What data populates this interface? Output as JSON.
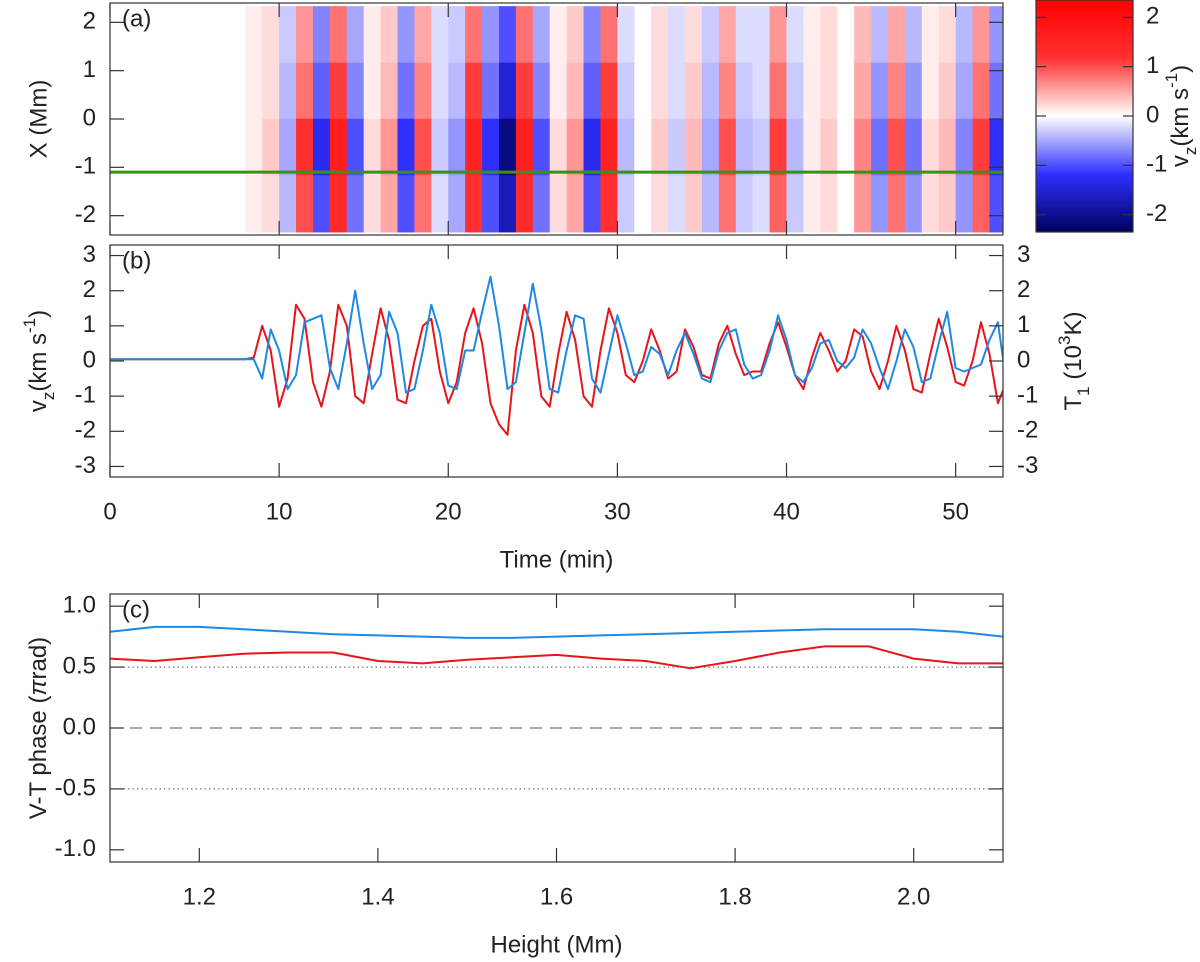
{
  "chart_data": [
    {
      "type": "heatmap",
      "annotation": "(a)",
      "ylabel": "X (Mm)",
      "xlim": [
        0,
        52.8
      ],
      "ylim": [
        -2.4,
        2.4
      ],
      "yticks": [
        -2,
        -1,
        0,
        1,
        2
      ],
      "x": [
        0.5,
        1.5,
        2.5,
        3.5,
        4.5,
        5.5,
        6.5,
        7.5,
        8.5,
        9.5,
        10.5,
        11.5,
        12.5,
        13.5,
        14.5,
        15.5,
        16.5,
        17.5,
        18.5,
        19.5,
        20.5,
        21.5,
        22.5,
        23.5,
        24.5,
        25.5,
        26.5,
        27.5,
        28.5,
        29.5,
        30.5,
        31.5,
        32.5,
        33.5,
        34.5,
        35.5,
        36.5,
        37.5,
        38.5,
        39.5,
        40.5,
        41.5,
        42.5,
        43.5,
        44.5,
        45.5,
        46.5,
        47.5,
        48.5,
        49.5,
        50.5,
        51.5,
        52.5
      ],
      "y": [
        1.75,
        0.58,
        -0.58,
        -1.75
      ],
      "z": [
        [
          0,
          0,
          0,
          0,
          0,
          0,
          0,
          0,
          0.1,
          0.2,
          -0.3,
          0.6,
          -0.7,
          0.8,
          -0.5,
          0.1,
          0.3,
          -0.6,
          0.5,
          -0.2,
          -0.3,
          0.8,
          -0.6,
          -1.0,
          0.8,
          -0.5,
          0.1,
          0.3,
          -0.7,
          0.8,
          -0.2,
          0.0,
          0.2,
          -0.2,
          0.2,
          -0.3,
          0.5,
          -0.2,
          -0.2,
          0.6,
          -0.2,
          0.1,
          0.2,
          0.0,
          0.4,
          -0.4,
          0.5,
          -0.4,
          0.1,
          0.2,
          -0.4,
          0.6,
          -0.6
        ],
        [
          0,
          0,
          0,
          0,
          0,
          0,
          0,
          0,
          0.1,
          0.2,
          -0.4,
          0.8,
          -0.9,
          1.1,
          -0.7,
          0.1,
          0.4,
          -0.8,
          0.7,
          -0.2,
          -0.4,
          1.1,
          -0.8,
          -1.5,
          1.1,
          -0.7,
          0.1,
          0.4,
          -0.9,
          1.1,
          -0.3,
          0.0,
          0.2,
          -0.2,
          0.3,
          -0.4,
          0.7,
          -0.3,
          -0.2,
          0.8,
          -0.3,
          0.1,
          0.2,
          0.0,
          0.5,
          -0.6,
          0.7,
          -0.6,
          0.1,
          0.3,
          -0.5,
          0.8,
          -0.8
        ],
        [
          0,
          0,
          0,
          0,
          0,
          0,
          0,
          0,
          0.1,
          0.3,
          -0.5,
          1.2,
          -1.3,
          1.6,
          -1.0,
          0.2,
          0.6,
          -1.2,
          1.0,
          -0.3,
          -0.6,
          1.5,
          -1.2,
          -2.1,
          1.6,
          -1.0,
          0.2,
          0.6,
          -1.3,
          1.5,
          -0.4,
          0.0,
          0.3,
          -0.3,
          0.4,
          -0.5,
          1.0,
          -0.4,
          -0.3,
          1.1,
          -0.4,
          0.1,
          0.3,
          0.0,
          0.7,
          -0.8,
          1.0,
          -0.8,
          0.2,
          0.4,
          -0.7,
          1.1,
          -1.2
        ],
        [
          0,
          0,
          0,
          0,
          0,
          0,
          0,
          0,
          0.1,
          0.2,
          -0.4,
          1.0,
          -1.0,
          1.3,
          -0.8,
          0.2,
          0.5,
          -1.0,
          0.8,
          -0.2,
          -0.5,
          1.2,
          -1.0,
          -1.7,
          1.3,
          -0.8,
          0.2,
          0.5,
          -1.0,
          1.2,
          -0.3,
          0.0,
          0.2,
          -0.2,
          0.3,
          -0.4,
          0.8,
          -0.3,
          -0.2,
          0.9,
          -0.3,
          0.1,
          0.2,
          0.0,
          0.6,
          -0.6,
          0.8,
          -0.6,
          0.2,
          0.3,
          -0.6,
          0.9,
          -1.0
        ]
      ],
      "zlim": [
        -2.35,
        2.35
      ],
      "zticks": [
        -2,
        -1,
        0,
        1,
        2
      ],
      "zlabel": [
        {
          "text": "v"
        },
        {
          "text": "z",
          "script": "sub"
        },
        {
          "text": "(km s"
        },
        {
          "text": "-1",
          "script": "sup"
        },
        {
          "text": ")"
        }
      ],
      "colormap": [
        "#000060",
        "#3030ff",
        "#ffffff",
        "#ff3030",
        "#ff0000"
      ],
      "marker_line": {
        "value": -1.1,
        "color": "#3b8f1c"
      }
    },
    {
      "type": "line",
      "annotation": "(b)",
      "xlabel": "Time (min)",
      "ylabel": [
        {
          "text": "v"
        },
        {
          "text": "z",
          "script": "sub"
        },
        {
          "text": "(km s"
        },
        {
          "text": "-1",
          "script": "sup"
        },
        {
          "text": ")"
        }
      ],
      "y2label": [
        {
          "text": "T"
        },
        {
          "text": "1",
          "script": "sub"
        },
        {
          "text": " (10"
        },
        {
          "text": "3",
          "script": "sup"
        },
        {
          "text": "K)"
        }
      ],
      "xlim": [
        0,
        52.8
      ],
      "xticks": [
        0,
        10,
        20,
        30,
        40,
        50
      ],
      "ylim": [
        -3.3,
        3.3
      ],
      "yticks": [
        -3,
        -2,
        -1,
        0,
        1,
        2,
        3
      ],
      "y2lim": [
        -3.3,
        3.3
      ],
      "y2ticks": [
        -3,
        -2,
        -1,
        0,
        1,
        2,
        3
      ],
      "x": [
        0,
        8,
        8.5,
        9,
        9.5,
        10,
        10.5,
        11,
        11.5,
        12,
        12.5,
        13,
        13.5,
        14,
        14.5,
        15,
        15.5,
        16,
        16.5,
        17,
        17.5,
        18,
        18.5,
        19,
        19.5,
        20,
        20.5,
        21,
        21.5,
        22,
        22.5,
        23,
        23.5,
        24,
        24.5,
        25,
        25.5,
        26,
        26.5,
        27,
        27.5,
        28,
        28.5,
        29,
        29.5,
        30,
        30.5,
        31,
        31.5,
        32,
        32.5,
        33,
        33.5,
        34,
        34.5,
        35,
        35.5,
        36,
        36.5,
        37,
        37.5,
        38,
        38.5,
        39,
        39.5,
        40,
        40.5,
        41,
        41.5,
        42,
        42.5,
        43,
        43.5,
        44,
        44.5,
        45,
        45.5,
        46,
        46.5,
        47,
        47.5,
        48,
        48.5,
        49,
        49.5,
        50,
        50.5,
        51,
        51.5,
        52,
        52.5,
        53
      ],
      "series": [
        {
          "color": "#e8141c",
          "values": [
            0.05,
            0.05,
            0.1,
            1.0,
            0.3,
            -1.3,
            -0.5,
            1.6,
            1.2,
            -0.6,
            -1.3,
            -0.3,
            1.6,
            1.0,
            -1.0,
            -1.2,
            0.2,
            1.5,
            0.6,
            -1.1,
            -1.2,
            0.0,
            1.0,
            1.2,
            -0.3,
            -1.2,
            -0.6,
            0.8,
            1.5,
            0.5,
            -1.2,
            -1.8,
            -2.1,
            0.3,
            1.6,
            0.8,
            -1.0,
            -1.3,
            0.2,
            1.4,
            0.6,
            -1.0,
            -1.3,
            0.3,
            1.5,
            0.8,
            -0.4,
            -0.6,
            0.0,
            0.9,
            0.3,
            -0.5,
            -0.3,
            0.9,
            0.4,
            -0.4,
            -0.5,
            0.5,
            1.0,
            0.2,
            -0.4,
            -0.3,
            -0.3,
            0.5,
            1.1,
            0.4,
            -0.4,
            -0.8,
            0.1,
            0.8,
            0.3,
            -0.3,
            0.0,
            0.9,
            0.7,
            -0.3,
            -0.8,
            0.0,
            1.0,
            0.3,
            -0.8,
            -0.9,
            0.2,
            1.2,
            0.4,
            -0.6,
            -0.7,
            0.0,
            1.1,
            0.2,
            -1.2,
            -0.6
          ]
        },
        {
          "color": "#1e88e5",
          "axis": "y2",
          "values": [
            0.05,
            0.05,
            0.05,
            -0.5,
            0.9,
            0.3,
            -0.8,
            -0.4,
            1.1,
            1.2,
            1.3,
            -0.2,
            -0.8,
            0.5,
            2.0,
            0.5,
            -0.8,
            -0.4,
            1.4,
            0.8,
            -0.9,
            -0.8,
            0.3,
            1.6,
            0.8,
            -0.7,
            -0.8,
            0.3,
            0.3,
            1.4,
            2.4,
            1.0,
            -0.8,
            -0.6,
            0.8,
            2.2,
            0.9,
            -0.8,
            -0.9,
            0.3,
            1.3,
            1.2,
            -0.5,
            -0.9,
            0.2,
            1.3,
            0.5,
            -0.4,
            -0.3,
            0.4,
            0.2,
            -0.4,
            0.3,
            0.8,
            0.2,
            -0.5,
            -0.6,
            0.3,
            0.8,
            0.9,
            -0.1,
            -0.5,
            -0.4,
            0.3,
            1.3,
            0.6,
            -0.4,
            -0.6,
            -0.2,
            0.5,
            0.6,
            0.0,
            -0.2,
            0.1,
            0.9,
            0.5,
            -0.2,
            -0.8,
            0.0,
            0.9,
            0.4,
            -0.6,
            -0.5,
            0.5,
            1.4,
            -0.2,
            -0.3,
            -0.2,
            -0.1,
            0.6,
            1.1,
            -0.6
          ]
        }
      ]
    },
    {
      "type": "line",
      "annotation": "(c)",
      "xlabel": "Height (Mm)",
      "ylabel": [
        {
          "text": "V-T phase ("
        },
        {
          "text": "π",
          "style": "italic"
        },
        {
          "text": "rad)"
        }
      ],
      "xlim": [
        1.1,
        2.1
      ],
      "xticks": [
        1.2,
        1.4,
        1.6,
        1.8,
        {
          "value": 2,
          "label": "2.0"
        }
      ],
      "ylim": [
        -1.1,
        1.1
      ],
      "yticks": [
        {
          "value": -1,
          "label": "-1.0"
        },
        -0.5,
        {
          "value": 0,
          "label": "0.0"
        },
        0.5,
        {
          "value": 1,
          "label": "1.0"
        }
      ],
      "hlines": [
        {
          "value": 0.5,
          "style": "dotted"
        },
        {
          "value": 0,
          "style": "dashed"
        },
        {
          "value": -0.5,
          "style": "dotted"
        }
      ],
      "x": [
        1.1,
        1.15,
        1.2,
        1.25,
        1.3,
        1.35,
        1.4,
        1.45,
        1.5,
        1.55,
        1.6,
        1.65,
        1.7,
        1.75,
        1.8,
        1.85,
        1.9,
        1.95,
        2.0,
        2.05,
        2.1
      ],
      "series": [
        {
          "color": "#1e88e5",
          "values": [
            0.79,
            0.83,
            0.83,
            0.81,
            0.79,
            0.77,
            0.76,
            0.75,
            0.74,
            0.74,
            0.75,
            0.76,
            0.77,
            0.78,
            0.79,
            0.8,
            0.81,
            0.81,
            0.81,
            0.79,
            0.75
          ]
        },
        {
          "color": "#e8141c",
          "values": [
            0.57,
            0.55,
            0.58,
            0.61,
            0.62,
            0.62,
            0.55,
            0.53,
            0.56,
            0.58,
            0.6,
            0.57,
            0.55,
            0.49,
            0.55,
            0.62,
            0.67,
            0.67,
            0.57,
            0.53,
            0.53
          ]
        }
      ]
    }
  ]
}
